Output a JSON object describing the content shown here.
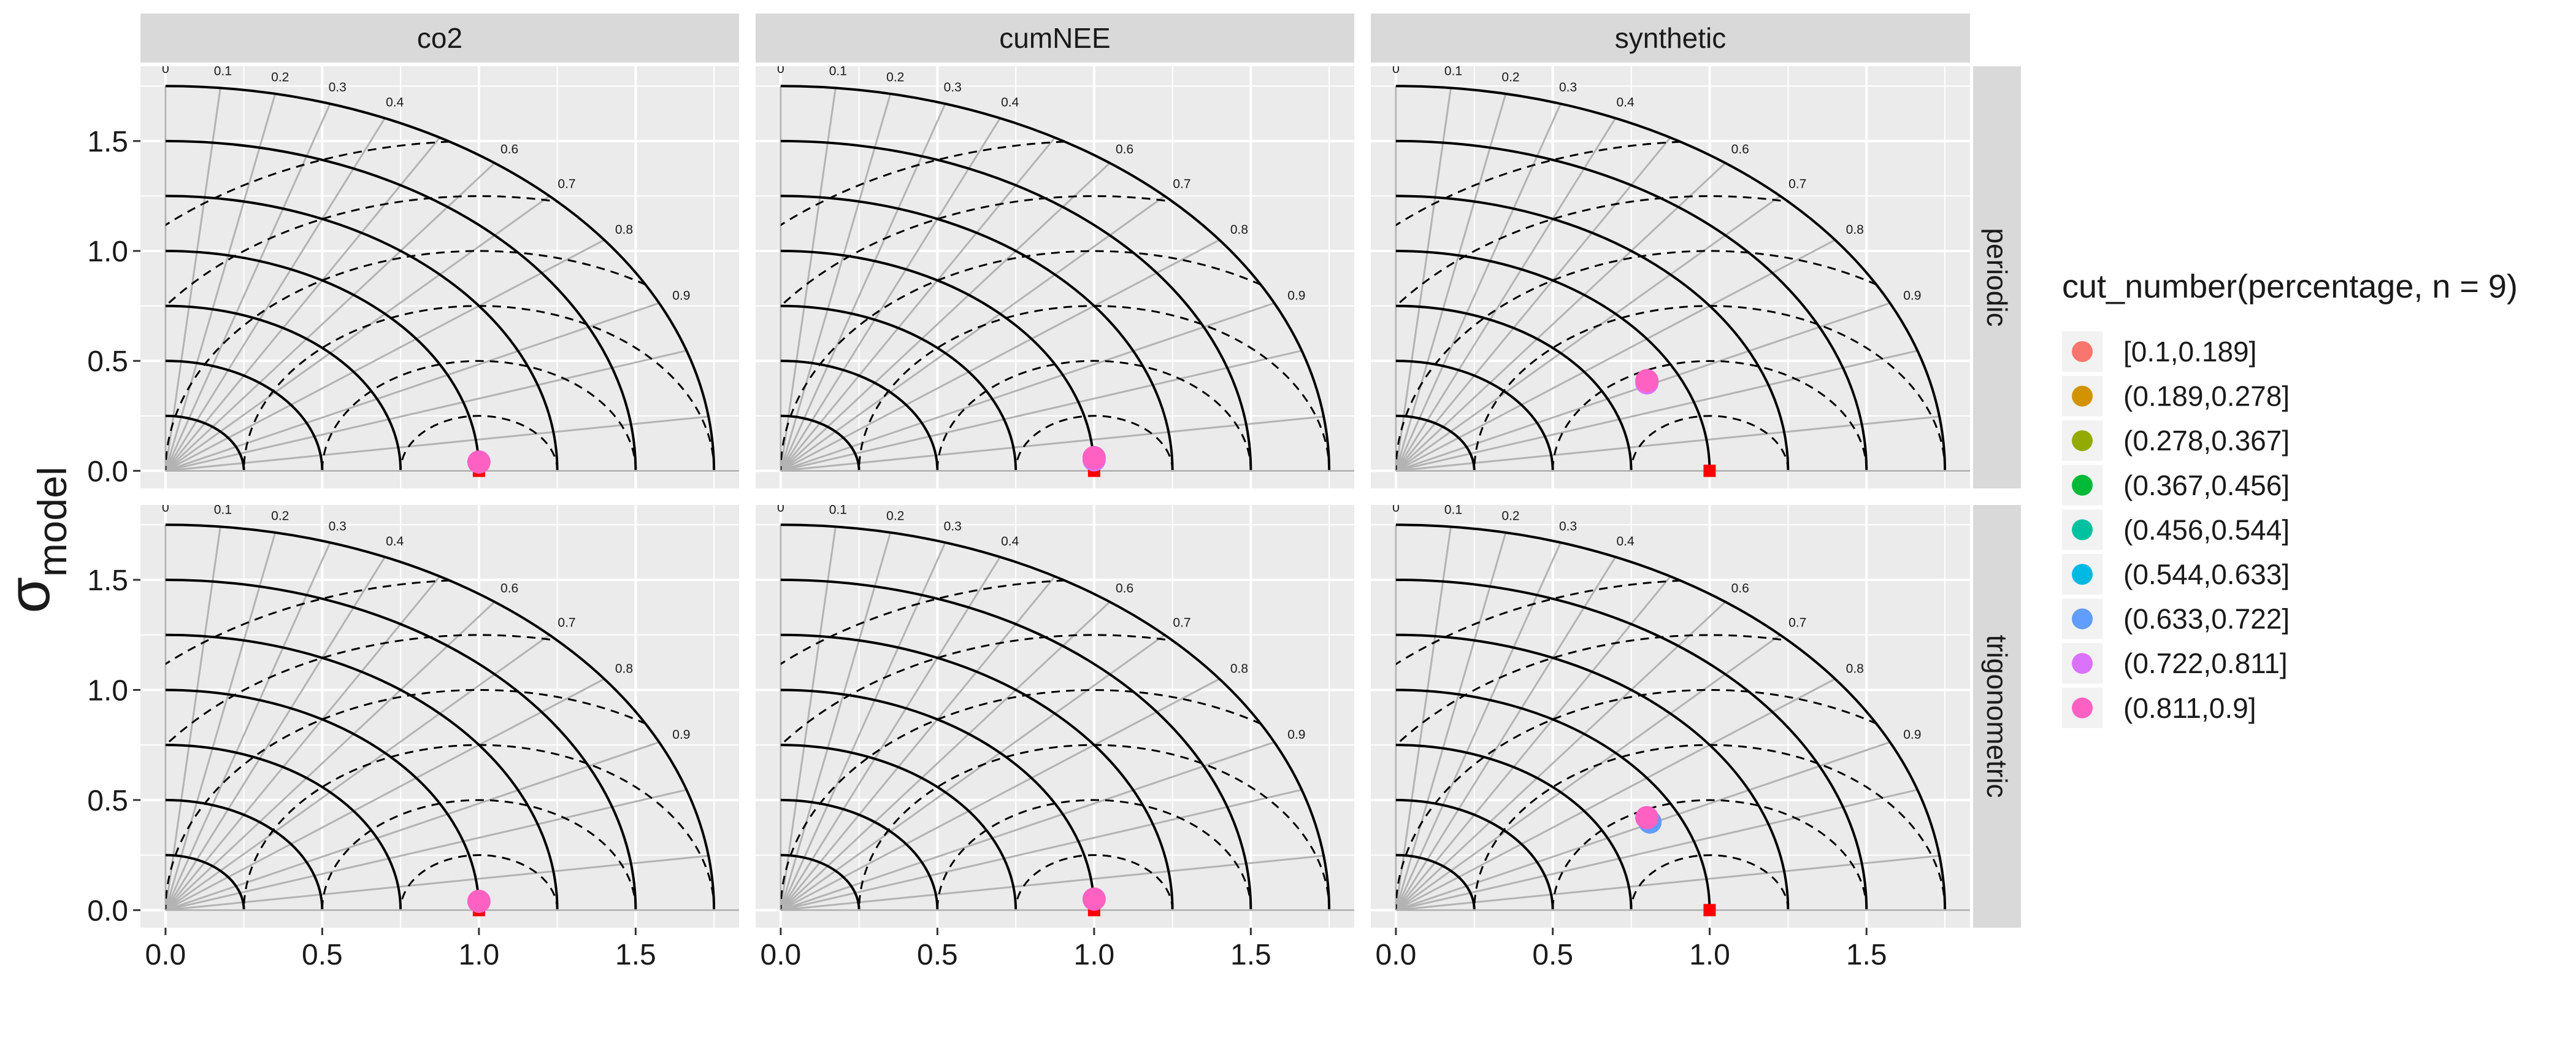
{
  "chart_data": {
    "type": "scatter",
    "y_label": {
      "symbol": "σ",
      "subscript": "model"
    },
    "xlim": [
      -0.08,
      1.83
    ],
    "ylim": [
      -0.08,
      1.84
    ],
    "xticks": [
      {
        "value": 0,
        "label": "0.0"
      },
      0.5,
      {
        "value": 1,
        "label": "1.0"
      },
      1.5
    ],
    "yticks": [
      {
        "value": 0,
        "label": "0.0"
      },
      0.5,
      {
        "value": 1,
        "label": "1.0"
      },
      1.5
    ],
    "minor_ticks": [
      0.25,
      0.75,
      1.25,
      1.75
    ],
    "grid": true,
    "sd_arcs": [
      0.25,
      0.5,
      0.75,
      1,
      1.25,
      1.5,
      1.75
    ],
    "rmsd_arcs": [
      0.25,
      0.5,
      0.75,
      1,
      1.25,
      1.5
    ],
    "correlation_lines": [
      0,
      0.1,
      0.2,
      0.3,
      0.4,
      0.5,
      0.6,
      0.7,
      0.8,
      0.9,
      0.95,
      0.99
    ],
    "correlation_labels": [
      0,
      0.1,
      0.2,
      0.3,
      0.4,
      0.6,
      0.7,
      0.8,
      0.9
    ],
    "reference": {
      "x": 1,
      "y": 0,
      "color": "#ff0000"
    },
    "facet_columns": [
      "co2",
      "cumNEE",
      "synthetic"
    ],
    "facet_rows": [
      "periodic",
      "trigonometric"
    ],
    "legend": {
      "title": "cut_number(percentage, n = 9)",
      "position": "right",
      "series": [
        {
          "name": "[0.1,0.189]",
          "color": "#F8766D"
        },
        {
          "name": "(0.189,0.278]",
          "color": "#D39200"
        },
        {
          "name": "(0.278,0.367]",
          "color": "#93AA00"
        },
        {
          "name": "(0.367,0.456]",
          "color": "#00BA38"
        },
        {
          "name": "(0.456,0.544]",
          "color": "#00C19F"
        },
        {
          "name": "(0.544,0.633]",
          "color": "#00B9E3"
        },
        {
          "name": "(0.633,0.722]",
          "color": "#619CFF"
        },
        {
          "name": "(0.722,0.811]",
          "color": "#DB72FB"
        },
        {
          "name": "(0.811,0.9]",
          "color": "#FF61C3"
        }
      ]
    },
    "panels": [
      {
        "column": 0,
        "row": 0,
        "points": [
          {
            "x": 1.0,
            "y": 0.04,
            "series": 8
          }
        ]
      },
      {
        "column": 1,
        "row": 0,
        "points": [
          {
            "x": 1.0,
            "y": 0.05,
            "series": 7
          },
          {
            "x": 1.0,
            "y": 0.06,
            "series": 8
          }
        ]
      },
      {
        "column": 2,
        "row": 0,
        "points": [
          {
            "x": 0.8,
            "y": 0.4,
            "series": 7
          },
          {
            "x": 0.8,
            "y": 0.41,
            "series": 8
          }
        ]
      },
      {
        "column": 0,
        "row": 1,
        "points": [
          {
            "x": 1.0,
            "y": 0.04,
            "series": 8
          }
        ]
      },
      {
        "column": 1,
        "row": 1,
        "points": [
          {
            "x": 1.0,
            "y": 0.05,
            "series": 8
          }
        ]
      },
      {
        "column": 2,
        "row": 1,
        "points": [
          {
            "x": 0.81,
            "y": 0.4,
            "series": 6
          },
          {
            "x": 0.8,
            "y": 0.42,
            "series": 8
          }
        ]
      }
    ]
  }
}
